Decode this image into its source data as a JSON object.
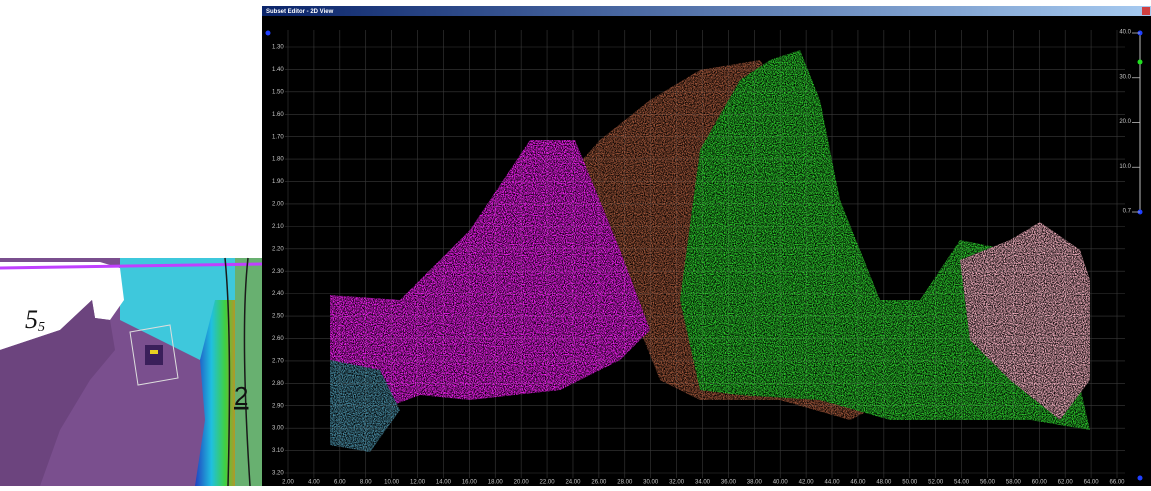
{
  "window": {
    "title": "Subset Editor - 2D View"
  },
  "plot": {
    "y_labels": [
      "1.30",
      "1.40",
      "1.50",
      "1.60",
      "1.70",
      "1.80",
      "1.90",
      "2.00",
      "2.10",
      "2.20",
      "2.30",
      "2.40",
      "2.50",
      "2.60",
      "2.70",
      "2.80",
      "2.90",
      "3.00",
      "3.10",
      "3.20"
    ],
    "x_labels": [
      "2.00",
      "4.00",
      "6.00",
      "8.00",
      "10.00",
      "12.00",
      "14.00",
      "16.00",
      "18.00",
      "20.00",
      "22.00",
      "24.00",
      "26.00",
      "28.00",
      "30.00",
      "32.00",
      "34.00",
      "36.00",
      "38.00",
      "40.00",
      "42.00",
      "44.00",
      "46.00",
      "48.00",
      "50.00",
      "52.00",
      "54.00",
      "56.00",
      "58.00",
      "60.00",
      "62.00",
      "64.00",
      "66.00"
    ]
  },
  "slider": {
    "labels": [
      "40.0",
      "30.0",
      "20.0",
      "10.0",
      "0.7"
    ]
  },
  "map": {
    "label_main": "5",
    "label_sub": "5",
    "label_right": "2"
  }
}
